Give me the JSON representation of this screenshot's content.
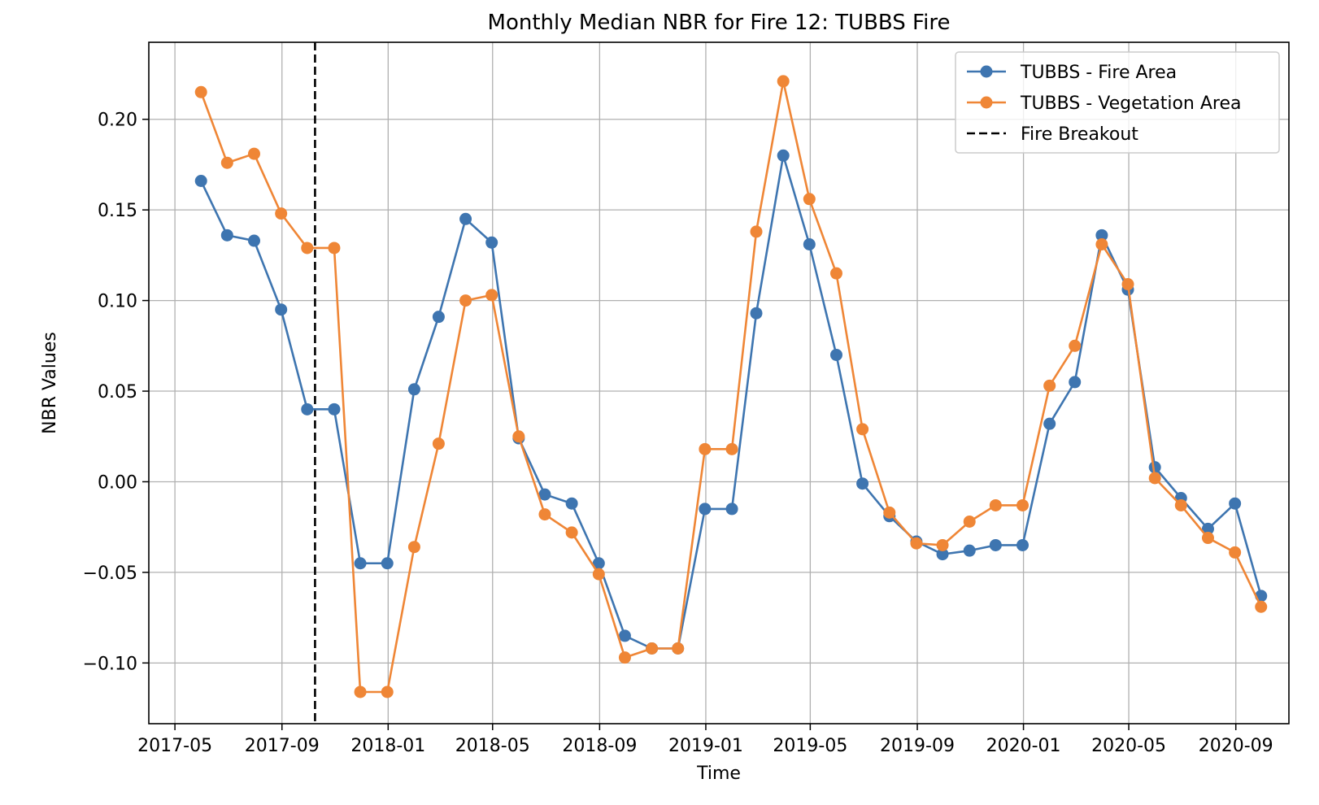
{
  "chart_data": {
    "type": "line",
    "title": "Monthly Median NBR for Fire 12: TUBBS Fire",
    "xlabel": "Time",
    "ylabel": "NBR Values",
    "x_range": [
      "2017-04-01",
      "2020-11-01"
    ],
    "ylim": [
      -0.1335,
      0.2425
    ],
    "x_ticks": [
      "2017-05",
      "2017-09",
      "2018-01",
      "2018-05",
      "2018-09",
      "2019-01",
      "2019-05",
      "2019-09",
      "2020-01",
      "2020-05",
      "2020-09"
    ],
    "y_ticks": [
      -0.1,
      -0.05,
      0.0,
      0.05,
      0.1,
      0.15,
      0.2
    ],
    "y_tick_labels": [
      "−0.10",
      "−0.05",
      "0.00",
      "0.05",
      "0.10",
      "0.15",
      "0.20"
    ],
    "grid": true,
    "legend_position": "top-right",
    "x": [
      "2017-05-31",
      "2017-06-30",
      "2017-07-31",
      "2017-08-31",
      "2017-09-30",
      "2017-10-31",
      "2017-11-30",
      "2017-12-31",
      "2018-01-31",
      "2018-02-28",
      "2018-03-31",
      "2018-04-30",
      "2018-05-31",
      "2018-06-30",
      "2018-07-31",
      "2018-08-31",
      "2018-09-30",
      "2018-10-31",
      "2018-11-30",
      "2018-12-31",
      "2019-01-31",
      "2019-02-28",
      "2019-03-31",
      "2019-04-30",
      "2019-05-31",
      "2019-06-30",
      "2019-07-31",
      "2019-08-31",
      "2019-09-30",
      "2019-10-31",
      "2019-11-30",
      "2019-12-31",
      "2020-01-31",
      "2020-02-29",
      "2020-03-31",
      "2020-04-30",
      "2020-05-31",
      "2020-06-30",
      "2020-07-31",
      "2020-08-31",
      "2020-09-30"
    ],
    "series": [
      {
        "name": "TUBBS - Fire Area",
        "color": "#3e75b0",
        "marker": "circle",
        "values": [
          0.166,
          0.136,
          0.133,
          0.095,
          0.04,
          0.04,
          -0.045,
          -0.045,
          0.051,
          0.091,
          0.145,
          0.132,
          0.024,
          -0.007,
          -0.012,
          -0.045,
          -0.085,
          -0.092,
          -0.092,
          -0.015,
          -0.015,
          0.093,
          0.18,
          0.131,
          0.07,
          -0.001,
          -0.019,
          -0.033,
          -0.04,
          -0.038,
          -0.035,
          -0.035,
          0.032,
          0.055,
          0.136,
          0.106,
          0.008,
          -0.009,
          -0.026,
          -0.012,
          -0.063
        ]
      },
      {
        "name": "TUBBS - Vegetation Area",
        "color": "#ef8636",
        "marker": "circle",
        "values": [
          0.215,
          0.176,
          0.181,
          0.148,
          0.129,
          0.129,
          -0.116,
          -0.116,
          -0.036,
          0.021,
          0.1,
          0.103,
          0.025,
          -0.018,
          -0.028,
          -0.051,
          -0.097,
          -0.092,
          -0.092,
          0.018,
          0.018,
          0.138,
          0.221,
          0.156,
          0.115,
          0.029,
          -0.017,
          -0.034,
          -0.035,
          -0.022,
          -0.013,
          -0.013,
          0.053,
          0.075,
          0.131,
          0.109,
          0.002,
          -0.013,
          -0.031,
          -0.039,
          -0.069
        ]
      }
    ],
    "vline": {
      "name": "Fire Breakout",
      "x": "2017-10-09",
      "color": "#000000",
      "style": "dashed"
    }
  }
}
